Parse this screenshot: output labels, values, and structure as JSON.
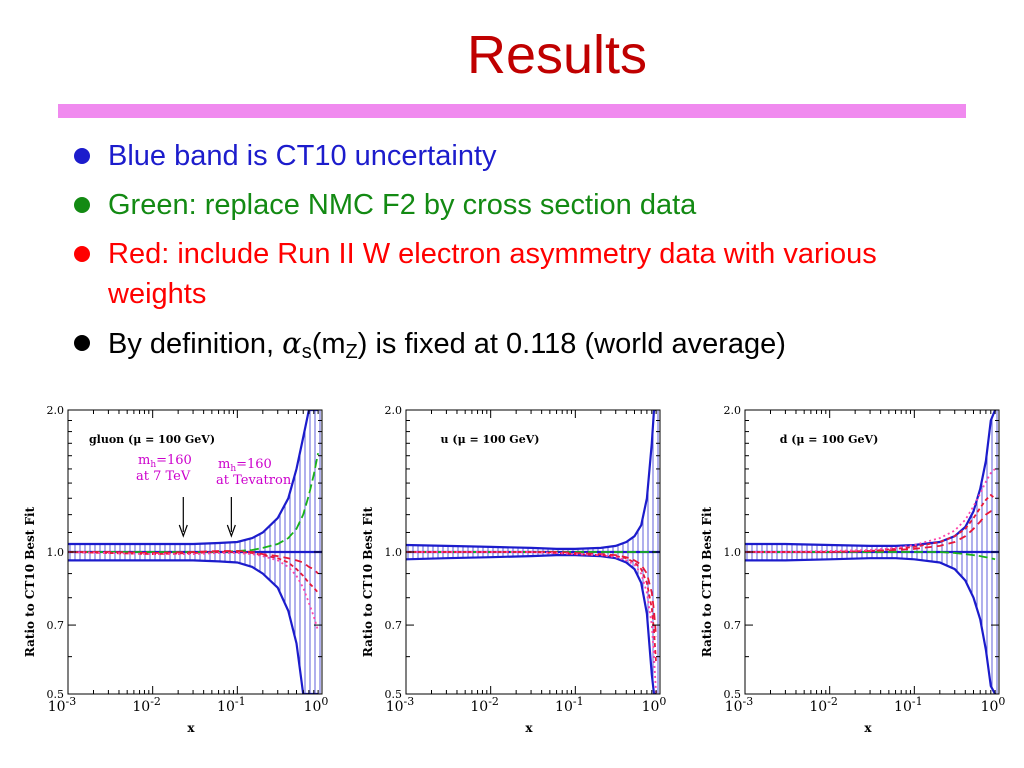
{
  "slide": {
    "title": "Results",
    "bullets": [
      {
        "text": "Blue band is CT10 uncertainty",
        "color": "#1c1ccc"
      },
      {
        "text": "Green: replace NMC F2 by cross section data",
        "color": "#138a13"
      },
      {
        "text": "Red: include Run II W electron asymmetry data with various weights",
        "color": "#ff0000"
      },
      {
        "text_before": "By definition, ",
        "alpha": "α",
        "s_sub": "s",
        "text_m": "(m",
        "z_sub": "Z",
        "text_after": ") is fixed at 0.118 (world average)",
        "color": "#000000"
      }
    ],
    "colors": {
      "title": "#c00000",
      "rule": "#f08aef",
      "band": "#1c1ccc",
      "green": "#19b319",
      "red": "#e8173a",
      "magenta": "#ff44aa"
    }
  },
  "chart_data": [
    {
      "type": "line",
      "title": "gluon (μ = 100 GeV)",
      "xlabel": "x",
      "ylabel": "Ratio to CT10 Best Fit",
      "xscale": "log",
      "yscale": "log",
      "xlim": [
        0.001,
        1
      ],
      "ylim": [
        0.5,
        2.0
      ],
      "xticks": [
        "10^-3",
        "10^-2",
        "10^-1",
        "10^0"
      ],
      "yticks": [
        "0.5",
        "0.7",
        "1.0",
        "2.0"
      ],
      "annotations": [
        {
          "text": "m_h=160 at 7 TeV",
          "x": 0.023
        },
        {
          "text": "m_h=160 at Tevatron",
          "x": 0.085
        }
      ],
      "x": [
        0.001,
        0.003,
        0.01,
        0.03,
        0.06,
        0.1,
        0.15,
        0.2,
        0.3,
        0.4,
        0.5,
        0.6,
        0.7,
        0.8,
        0.9
      ],
      "band_upper": [
        1.04,
        1.04,
        1.04,
        1.04,
        1.045,
        1.05,
        1.07,
        1.1,
        1.18,
        1.3,
        1.5,
        1.75,
        2.0,
        2.0,
        2.0
      ],
      "band_lower": [
        0.96,
        0.96,
        0.96,
        0.96,
        0.955,
        0.95,
        0.93,
        0.9,
        0.84,
        0.75,
        0.64,
        0.5,
        0.5,
        0.5,
        0.5
      ],
      "series": [
        {
          "color": "#19b319",
          "values": [
            1.0,
            1.0,
            1.0,
            1.0,
            1.0,
            1.005,
            1.01,
            1.02,
            1.04,
            1.07,
            1.12,
            1.2,
            1.32,
            1.46,
            1.62
          ]
        },
        {
          "color": "#e8173a",
          "values": [
            1.0,
            1.0,
            0.995,
            1.0,
            1.005,
            1.005,
            1.0,
            0.99,
            0.98,
            0.97,
            0.96,
            0.95,
            0.93,
            0.92,
            0.9
          ]
        },
        {
          "color": "#e8173a",
          "values": [
            1.0,
            0.995,
            0.99,
            0.995,
            1.0,
            1.0,
            0.995,
            0.985,
            0.97,
            0.95,
            0.92,
            0.89,
            0.86,
            0.84,
            0.82
          ]
        },
        {
          "color": "#ff44aa",
          "values": [
            1.0,
            0.995,
            0.99,
            0.99,
            0.995,
            0.995,
            0.99,
            0.98,
            0.96,
            0.93,
            0.89,
            0.84,
            0.78,
            0.73,
            0.68
          ]
        }
      ]
    },
    {
      "type": "line",
      "title": "u (μ = 100 GeV)",
      "xlabel": "x",
      "ylabel": "Ratio to CT10 Best Fit",
      "xscale": "log",
      "yscale": "log",
      "xlim": [
        0.001,
        1
      ],
      "ylim": [
        0.5,
        2.0
      ],
      "xticks": [
        "10^-3",
        "10^-2",
        "10^-1",
        "10^0"
      ],
      "yticks": [
        "0.5",
        "0.7",
        "1.0",
        "2.0"
      ],
      "x": [
        0.001,
        0.003,
        0.01,
        0.03,
        0.06,
        0.1,
        0.2,
        0.3,
        0.4,
        0.5,
        0.6,
        0.7,
        0.8,
        0.85,
        0.9
      ],
      "band_upper": [
        1.035,
        1.03,
        1.025,
        1.02,
        1.015,
        1.015,
        1.02,
        1.03,
        1.05,
        1.08,
        1.14,
        1.3,
        1.7,
        2.0,
        2.0
      ],
      "band_lower": [
        0.965,
        0.97,
        0.975,
        0.98,
        0.985,
        0.985,
        0.98,
        0.97,
        0.95,
        0.92,
        0.86,
        0.74,
        0.55,
        0.5,
        0.5
      ],
      "series": [
        {
          "color": "#19b319",
          "values": [
            1.0,
            1.0,
            1.0,
            1.0,
            1.0,
            1.0,
            1.0,
            1.0,
            1.0,
            1.0,
            1.0,
            1.0,
            1.0,
            1.0,
            1.0
          ]
        },
        {
          "color": "#e8173a",
          "values": [
            1.0,
            1.0,
            1.0,
            1.0,
            1.0,
            0.995,
            0.99,
            0.985,
            0.975,
            0.96,
            0.94,
            0.9,
            0.82,
            0.75,
            0.66
          ]
        },
        {
          "color": "#e8173a",
          "values": [
            1.0,
            1.0,
            1.0,
            1.0,
            0.995,
            0.99,
            0.985,
            0.98,
            0.97,
            0.95,
            0.92,
            0.86,
            0.76,
            0.68,
            0.58
          ]
        },
        {
          "color": "#ff44aa",
          "values": [
            1.0,
            1.0,
            1.0,
            1.0,
            0.995,
            0.99,
            0.985,
            0.975,
            0.96,
            0.94,
            0.9,
            0.82,
            0.7,
            0.6,
            0.5
          ]
        }
      ]
    },
    {
      "type": "line",
      "title": "d (μ = 100 GeV)",
      "xlabel": "x",
      "ylabel": "Ratio to CT10 Best Fit",
      "xscale": "log",
      "yscale": "log",
      "xlim": [
        0.001,
        1
      ],
      "ylim": [
        0.5,
        2.0
      ],
      "xticks": [
        "10^-3",
        "10^-2",
        "10^-1",
        "10^0"
      ],
      "yticks": [
        "0.5",
        "0.7",
        "1.0",
        "2.0"
      ],
      "x": [
        0.001,
        0.003,
        0.01,
        0.03,
        0.06,
        0.1,
        0.2,
        0.3,
        0.4,
        0.5,
        0.6,
        0.7,
        0.8,
        0.9
      ],
      "band_upper": [
        1.04,
        1.04,
        1.035,
        1.03,
        1.03,
        1.035,
        1.05,
        1.08,
        1.13,
        1.22,
        1.36,
        1.56,
        1.9,
        2.0
      ],
      "band_lower": [
        0.96,
        0.96,
        0.965,
        0.97,
        0.97,
        0.965,
        0.95,
        0.92,
        0.87,
        0.8,
        0.72,
        0.62,
        0.52,
        0.5
      ],
      "series": [
        {
          "color": "#19b319",
          "values": [
            1.0,
            1.0,
            1.0,
            1.0,
            1.0,
            1.0,
            1.0,
            0.995,
            0.99,
            0.985,
            0.98,
            0.975,
            0.97,
            0.965
          ]
        },
        {
          "color": "#e8173a",
          "values": [
            1.0,
            1.0,
            1.0,
            1.005,
            1.01,
            1.015,
            1.03,
            1.05,
            1.08,
            1.12,
            1.16,
            1.2,
            1.22,
            1.21
          ]
        },
        {
          "color": "#e8173a",
          "values": [
            1.0,
            1.0,
            1.0,
            1.005,
            1.015,
            1.025,
            1.05,
            1.08,
            1.12,
            1.18,
            1.24,
            1.29,
            1.32,
            1.3
          ]
        },
        {
          "color": "#ff44aa",
          "values": [
            1.0,
            1.0,
            1.005,
            1.01,
            1.02,
            1.035,
            1.07,
            1.11,
            1.17,
            1.25,
            1.33,
            1.41,
            1.47,
            1.5
          ]
        }
      ]
    }
  ]
}
